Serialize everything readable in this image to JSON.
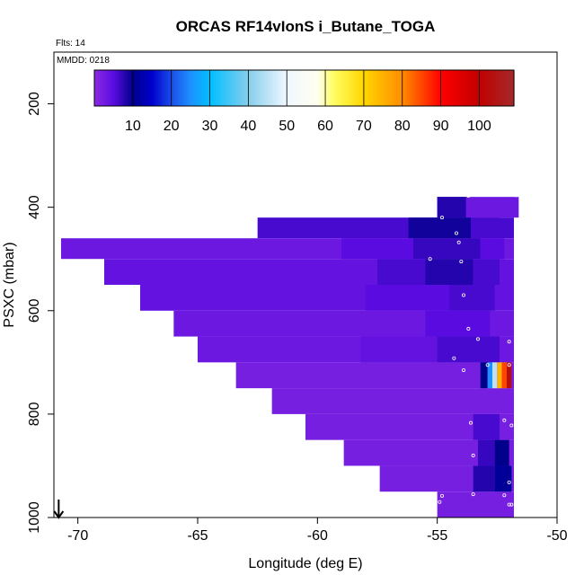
{
  "chart_data": {
    "type": "heatmap",
    "title": "ORCAS RF14vIonS i_Butane_TOGA",
    "flights_label": "Flts: 14",
    "date_label": "MMDD: 0218",
    "xlabel": "Longitude (deg E)",
    "ylabel": "PSXC (mbar)",
    "xlim": [
      -71,
      -50
    ],
    "ylim": [
      1000,
      100
    ],
    "y_inverted": true,
    "x_ticks": [
      -70,
      -65,
      -60,
      -55,
      -50
    ],
    "x_tick_labels": [
      "-70",
      "-65",
      "-60",
      "-55",
      "-50"
    ],
    "y_ticks": [
      200,
      400,
      600,
      800,
      1000
    ],
    "y_tick_labels": [
      "200",
      "400",
      "600",
      "800",
      "1000"
    ],
    "colorbar": {
      "vmin": 0,
      "vmax": 109,
      "ticks": [
        10,
        20,
        30,
        40,
        50,
        60,
        70,
        80,
        90,
        100
      ],
      "tick_labels": [
        "10",
        "20",
        "30",
        "40",
        "50",
        "60",
        "70",
        "80",
        "90",
        "100"
      ],
      "color_stops": [
        {
          "v": 0,
          "c": "#8a2be2"
        },
        {
          "v": 5,
          "c": "#5a0ce0"
        },
        {
          "v": 10,
          "c": "#00008b"
        },
        {
          "v": 15,
          "c": "#0000cd"
        },
        {
          "v": 20,
          "c": "#1a4ee8"
        },
        {
          "v": 25,
          "c": "#1e90ff"
        },
        {
          "v": 30,
          "c": "#00bfff"
        },
        {
          "v": 40,
          "c": "#87ceeb"
        },
        {
          "v": 50,
          "c": "#f0f8ff"
        },
        {
          "v": 58,
          "c": "#fffff0"
        },
        {
          "v": 62,
          "c": "#ffff66"
        },
        {
          "v": 70,
          "c": "#ffd700"
        },
        {
          "v": 80,
          "c": "#ff8c00"
        },
        {
          "v": 90,
          "c": "#ff0000"
        },
        {
          "v": 100,
          "c": "#c00000"
        },
        {
          "v": 109,
          "c": "#a52a2a"
        }
      ]
    },
    "arrow_marker": {
      "x": -70.8,
      "y": 1000
    },
    "bands": [
      {
        "p": [
          380,
          420
        ],
        "x": [
          -55.0,
          -51.6
        ],
        "v": 3
      },
      {
        "p": [
          420,
          460
        ],
        "x": [
          -62.5,
          -51.8
        ],
        "v": 6
      },
      {
        "p": [
          460,
          500
        ],
        "x": [
          -70.7,
          -51.8
        ],
        "v": 3
      },
      {
        "p": [
          500,
          550
        ],
        "x": [
          -68.9,
          -51.8
        ],
        "v": 4
      },
      {
        "p": [
          550,
          600
        ],
        "x": [
          -67.4,
          -51.8
        ],
        "v": 4
      },
      {
        "p": [
          600,
          650
        ],
        "x": [
          -66.0,
          -51.8
        ],
        "v": 3
      },
      {
        "p": [
          650,
          700
        ],
        "x": [
          -65.0,
          -51.8
        ],
        "v": 3
      },
      {
        "p": [
          700,
          750
        ],
        "x": [
          -63.4,
          -51.8
        ],
        "v": 2
      },
      {
        "p": [
          750,
          800
        ],
        "x": [
          -61.9,
          -51.8
        ],
        "v": 2
      },
      {
        "p": [
          800,
          850
        ],
        "x": [
          -60.5,
          -51.8
        ],
        "v": 2
      },
      {
        "p": [
          850,
          900
        ],
        "x": [
          -58.9,
          -51.8
        ],
        "v": 2
      },
      {
        "p": [
          900,
          950
        ],
        "x": [
          -57.4,
          -51.8
        ],
        "v": 2
      },
      {
        "p": [
          950,
          1000
        ],
        "x": [
          -55.0,
          -51.8
        ],
        "v": 2
      }
    ],
    "cells": [
      {
        "p": [
          380,
          420
        ],
        "x": [
          -55.0,
          -53.8
        ],
        "v": 8
      },
      {
        "p": [
          420,
          460
        ],
        "x": [
          -56.2,
          -53.6
        ],
        "v": 9
      },
      {
        "p": [
          420,
          460
        ],
        "x": [
          -53.6,
          -52.4
        ],
        "v": 6
      },
      {
        "p": [
          460,
          500
        ],
        "x": [
          -59.0,
          -56.0
        ],
        "v": 5
      },
      {
        "p": [
          460,
          500
        ],
        "x": [
          -56.0,
          -53.2
        ],
        "v": 7
      },
      {
        "p": [
          460,
          500
        ],
        "x": [
          -53.2,
          -52.2
        ],
        "v": 5
      },
      {
        "p": [
          500,
          550
        ],
        "x": [
          -57.5,
          -55.5
        ],
        "v": 6
      },
      {
        "p": [
          500,
          550
        ],
        "x": [
          -55.5,
          -53.5
        ],
        "v": 8
      },
      {
        "p": [
          500,
          550
        ],
        "x": [
          -53.5,
          -52.4
        ],
        "v": 6
      },
      {
        "p": [
          550,
          600
        ],
        "x": [
          -58.0,
          -54.5
        ],
        "v": 5
      },
      {
        "p": [
          550,
          600
        ],
        "x": [
          -54.5,
          -52.6
        ],
        "v": 6
      },
      {
        "p": [
          600,
          650
        ],
        "x": [
          -55.5,
          -52.8
        ],
        "v": 5
      },
      {
        "p": [
          650,
          700
        ],
        "x": [
          -58.2,
          -55.0
        ],
        "v": 4
      },
      {
        "p": [
          650,
          700
        ],
        "x": [
          -55.0,
          -52.4
        ],
        "v": 6
      },
      {
        "p": [
          700,
          750
        ],
        "x": [
          -53.2,
          -52.9
        ],
        "v": 10
      },
      {
        "p": [
          700,
          750
        ],
        "x": [
          -52.9,
          -52.7
        ],
        "v": 25
      },
      {
        "p": [
          700,
          750
        ],
        "x": [
          -52.7,
          -52.5
        ],
        "v": 45
      },
      {
        "p": [
          700,
          750
        ],
        "x": [
          -52.5,
          -52.3
        ],
        "v": 75
      },
      {
        "p": [
          700,
          750
        ],
        "x": [
          -52.3,
          -52.1
        ],
        "v": 85
      },
      {
        "p": [
          700,
          750
        ],
        "x": [
          -52.1,
          -51.9
        ],
        "v": 103
      },
      {
        "p": [
          800,
          850
        ],
        "x": [
          -53.5,
          -52.4
        ],
        "v": 6
      },
      {
        "p": [
          850,
          900
        ],
        "x": [
          -53.3,
          -52.6
        ],
        "v": 7
      },
      {
        "p": [
          850,
          900
        ],
        "x": [
          -52.6,
          -52.0
        ],
        "v": 10
      },
      {
        "p": [
          900,
          950
        ],
        "x": [
          -53.5,
          -52.6
        ],
        "v": 8
      },
      {
        "p": [
          900,
          950
        ],
        "x": [
          -52.6,
          -51.9
        ],
        "v": 11
      }
    ],
    "points": [
      [
        -54.6,
        375
      ],
      [
        -54.5,
        375
      ],
      [
        -54.4,
        375
      ],
      [
        -54.3,
        375
      ],
      [
        -54.2,
        375
      ],
      [
        -54.1,
        375
      ],
      [
        -53.7,
        378
      ],
      [
        -51.7,
        377
      ],
      [
        -54.8,
        420
      ],
      [
        -54.2,
        450
      ],
      [
        -54.1,
        468
      ],
      [
        -55.3,
        500
      ],
      [
        -54.0,
        505
      ],
      [
        -53.9,
        570
      ],
      [
        -53.7,
        635
      ],
      [
        -53.3,
        655
      ],
      [
        -52.0,
        660
      ],
      [
        -54.3,
        692
      ],
      [
        -52.9,
        705
      ],
      [
        -52.0,
        705
      ],
      [
        -53.9,
        715
      ],
      [
        -52.2,
        812
      ],
      [
        -53.6,
        817
      ],
      [
        -51.9,
        822
      ],
      [
        -53.5,
        880
      ],
      [
        -52.0,
        932
      ],
      [
        -53.5,
        955
      ],
      [
        -52.2,
        957
      ],
      [
        -54.8,
        958
      ],
      [
        -54.9,
        970
      ],
      [
        -52.0,
        975
      ],
      [
        -51.9,
        975
      ]
    ]
  }
}
